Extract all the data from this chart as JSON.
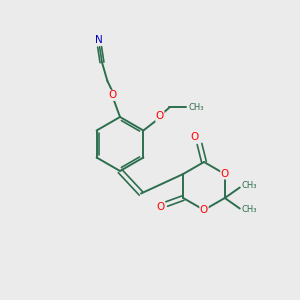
{
  "background_color": "#ebebeb",
  "bond_color": "#2d6e4e",
  "atom_colors": {
    "O": "#ff0000",
    "N": "#0000bb",
    "C": "#2d6e4e"
  },
  "figsize": [
    3.0,
    3.0
  ],
  "dpi": 100,
  "xlim": [
    0,
    10
  ],
  "ylim": [
    0,
    10
  ]
}
